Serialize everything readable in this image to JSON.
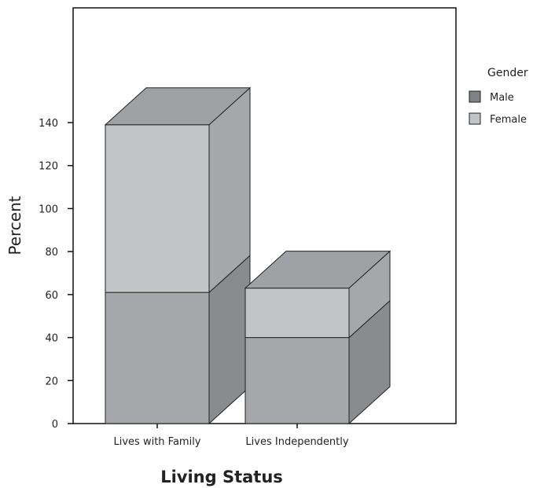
{
  "chart_data": {
    "type": "bar",
    "style": "3d-stacked",
    "categories": [
      "Lives with Family",
      "Lives Independently"
    ],
    "series": [
      {
        "name": "Male",
        "values": [
          61,
          40
        ],
        "color": "#a6a7ab",
        "side_color": "#8a8b8f",
        "top_color": "#9b9ca0",
        "legend_color": "#808184"
      },
      {
        "name": "Female",
        "values": [
          78,
          23
        ],
        "color": "#c3c4c6",
        "side_color": "#a6a7aa",
        "top_color": "#a0a1a4",
        "legend_color": "#c3c4c6"
      }
    ],
    "xlabel": "Living Status",
    "ylabel": "Percent",
    "yticks": [
      0,
      20,
      40,
      60,
      80,
      100,
      120,
      140
    ],
    "ylim": [
      0,
      150
    ],
    "legend_title": "Gender",
    "legend_position": "right",
    "grid": false
  }
}
